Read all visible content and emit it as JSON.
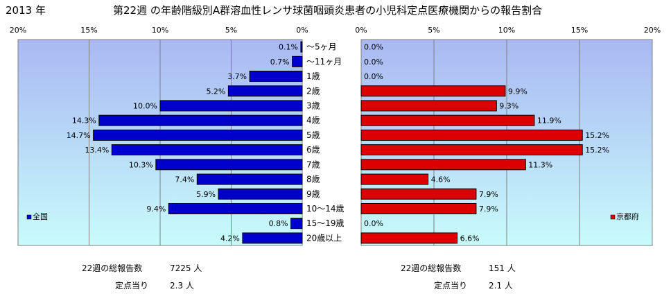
{
  "header": {
    "year": "2013 年",
    "title": "第22週 の年齢階級別A群溶血性レンサ球菌咽頭炎患者の小児科定点医療機関からの報告割合"
  },
  "age_groups": [
    "～5ヶ月",
    "～11ヶ月",
    "1歳",
    "2歳",
    "3歳",
    "4歳",
    "5歳",
    "6歳",
    "7歳",
    "8歳",
    "9歳",
    "10～14歳",
    "15～19歳",
    "20歳以上"
  ],
  "chart_data": [
    {
      "type": "bar",
      "orientation": "horizontal",
      "direction": "right-to-left",
      "categories": [
        "～5ヶ月",
        "～11ヶ月",
        "1歳",
        "2歳",
        "3歳",
        "4歳",
        "5歳",
        "6歳",
        "7歳",
        "8歳",
        "9歳",
        "10～14歳",
        "15～19歳",
        "20歳以上"
      ],
      "values": [
        0.1,
        0.7,
        3.7,
        5.2,
        10.0,
        14.3,
        14.7,
        13.4,
        10.3,
        7.4,
        5.9,
        9.4,
        0.8,
        4.2
      ],
      "labels": [
        "0.1%",
        "0.7%",
        "3.7%",
        "5.2%",
        "10.0%",
        "14.3%",
        "14.7%",
        "13.4%",
        "10.3%",
        "7.4%",
        "5.9%",
        "9.4%",
        "0.8%",
        "4.2%"
      ],
      "xlim": [
        0,
        20
      ],
      "ticks": [
        "0%",
        "5%",
        "10%",
        "15%",
        "20%"
      ],
      "grid": true,
      "legend": {
        "label": "全国",
        "placement": "bottom-left"
      },
      "color": "#0000cc"
    },
    {
      "type": "bar",
      "orientation": "horizontal",
      "direction": "left-to-right",
      "categories": [
        "～5ヶ月",
        "～11ヶ月",
        "1歳",
        "2歳",
        "3歳",
        "4歳",
        "5歳",
        "6歳",
        "7歳",
        "8歳",
        "9歳",
        "10～14歳",
        "15～19歳",
        "20歳以上"
      ],
      "values": [
        0.0,
        0.0,
        0.0,
        9.9,
        9.3,
        11.9,
        15.2,
        15.2,
        11.3,
        4.6,
        7.9,
        7.9,
        0.0,
        6.6
      ],
      "labels": [
        "0.0%",
        "0.0%",
        "0.0%",
        "9.9%",
        "9.3%",
        "11.9%",
        "15.2%",
        "15.2%",
        "11.3%",
        "4.6%",
        "7.9%",
        "7.9%",
        "0.0%",
        "6.6%"
      ],
      "xlim": [
        0,
        20
      ],
      "ticks": [
        "0%",
        "5%",
        "10%",
        "15%",
        "20%"
      ],
      "grid": true,
      "legend": {
        "label": "京都府",
        "placement": "bottom-right"
      },
      "color": "#dd0000"
    }
  ],
  "footer": {
    "left": {
      "total_label": "22週の総報告数",
      "total_value": "7225 人",
      "per_label": "定点当り",
      "per_value": "2.3 人"
    },
    "right": {
      "total_label": "22週の総報告数",
      "total_value": "151 人",
      "per_label": "定点当り",
      "per_value": "2.1 人"
    }
  },
  "colors": {
    "plot_top": "#a9b8f2",
    "plot_bottom": "#c8fbfb",
    "left_bar": "#0000cc",
    "right_bar": "#dd0000"
  }
}
